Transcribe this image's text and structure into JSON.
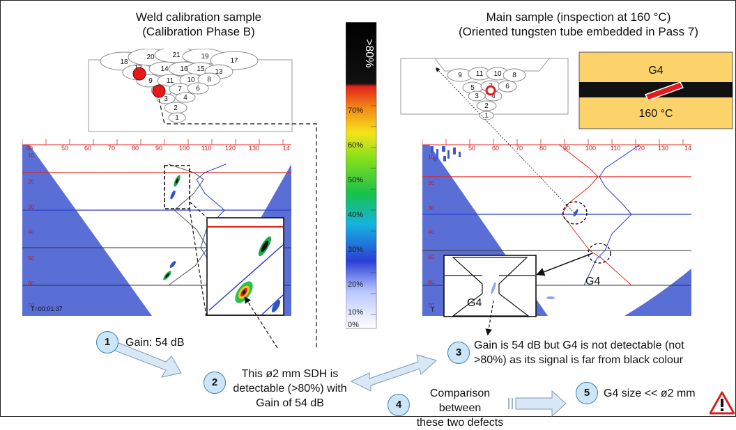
{
  "left_panel": {
    "title_line1": "Weld calibration sample",
    "title_line2": "(Calibration Phase B)",
    "pass_numbers": [
      "18",
      "20",
      "21",
      "19",
      "17",
      "12",
      "14",
      "16",
      "15",
      "13",
      "9",
      "11",
      "10",
      "8",
      "7",
      "6",
      "3",
      "4",
      "2",
      "1"
    ],
    "scan": {
      "x_ticks": [
        "40",
        "50",
        "60",
        "70",
        "80",
        "90",
        "100",
        "110",
        "120",
        "130",
        "14"
      ],
      "y_ticks": [
        "10",
        "20",
        "30",
        "40",
        "50",
        "60",
        "70"
      ],
      "timestamp": "T=00:01:37"
    }
  },
  "right_panel": {
    "title_line1": "Main sample (inspection at 160 °C)",
    "title_line2": "(Oriented tungsten tube embedded in Pass 7)",
    "pass_numbers": [
      "9",
      "11",
      "10",
      "8",
      "5",
      "7",
      "6",
      "3",
      "4",
      "2",
      "1"
    ],
    "inset_label": "G4",
    "inset_temp": "160 °C",
    "scan": {
      "x_ticks": [
        "50",
        "60",
        "70",
        "80",
        "90",
        "100",
        "110",
        "120",
        "130",
        "14"
      ],
      "y_ticks": [
        "10",
        "20",
        "30",
        "40",
        "50",
        "60",
        "70"
      ],
      "timestamp": "T",
      "defect_label": "G4",
      "zoom_label": "G4"
    }
  },
  "color_scale": {
    "top_label": ">80%",
    "ticks": [
      "70%",
      "60%",
      "50%",
      "40%",
      "30%",
      "20%",
      "10%",
      "0%"
    ]
  },
  "steps": [
    {
      "num": "1",
      "text": "Gain: 54 dB"
    },
    {
      "num": "2",
      "lines": [
        "This ø2 mm SDH is",
        "detectable (>80%) with",
        "Gain of 54 dB"
      ]
    },
    {
      "num": "3",
      "lines": [
        "Gain is 54 dB but G4 is not detectable (not",
        ">80%) as its signal is far from black colour"
      ]
    },
    {
      "num": "4",
      "lines": [
        "Comparison between",
        "these two defects"
      ]
    },
    {
      "num": "5",
      "text": "G4 size << ø2 mm"
    }
  ],
  "colors": {
    "scan_blue": "#5a6fd6",
    "beam_white": "#ffffff",
    "red_line": "#e0261e",
    "blue_line": "#2a3fd0",
    "tube_yellow": "#fcd26a",
    "defect_red": "#e31b1b",
    "arrow_fill": "#d8e8f7",
    "arrow_stroke": "#7a98b8"
  },
  "icons": [
    "warning-icon"
  ]
}
